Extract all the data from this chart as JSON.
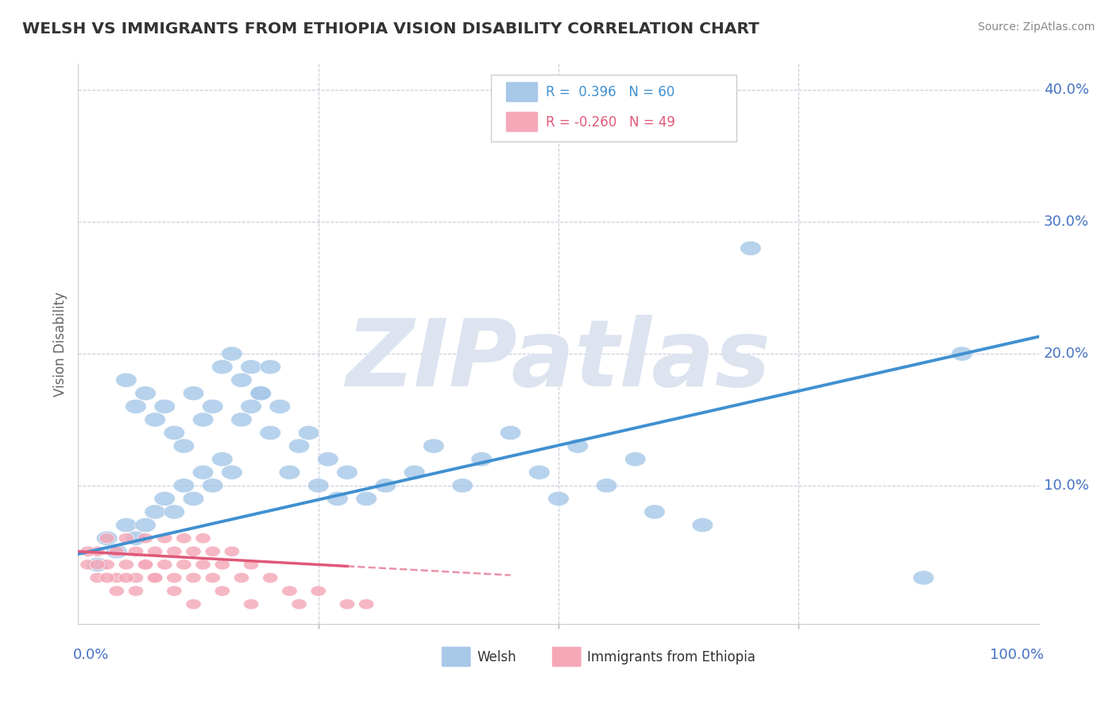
{
  "title": "WELSH VS IMMIGRANTS FROM ETHIOPIA VISION DISABILITY CORRELATION CHART",
  "source": "Source: ZipAtlas.com",
  "ylabel": "Vision Disability",
  "xlim": [
    0.0,
    1.0
  ],
  "ylim": [
    -0.005,
    0.42
  ],
  "welsh_R": 0.396,
  "welsh_N": 60,
  "ethiopia_R": -0.26,
  "ethiopia_N": 49,
  "blue_color": "#a8c8e8",
  "blue_line_color": "#4090d0",
  "blue_text_color": "#4090d0",
  "pink_color": "#f4a8b8",
  "pink_line_color": "#e05878",
  "pink_text_color": "#e05878",
  "background_color": "#ffffff",
  "watermark_color": "#dde4f0",
  "grid_color": "#c8ccd8",
  "title_color": "#333333",
  "axis_label_color": "#4472c4",
  "ytick_vals": [
    0.0,
    0.1,
    0.2,
    0.3,
    0.4
  ],
  "ytick_labels": [
    "",
    "10.0%",
    "20.0%",
    "30.0%",
    "40.0%"
  ],
  "welsh_x": [
    0.02,
    0.03,
    0.04,
    0.05,
    0.06,
    0.07,
    0.08,
    0.09,
    0.1,
    0.11,
    0.12,
    0.13,
    0.14,
    0.15,
    0.16,
    0.17,
    0.18,
    0.19,
    0.2,
    0.21,
    0.22,
    0.23,
    0.24,
    0.25,
    0.26,
    0.27,
    0.28,
    0.3,
    0.32,
    0.35,
    0.37,
    0.4,
    0.42,
    0.45,
    0.48,
    0.5,
    0.52,
    0.55,
    0.58,
    0.6,
    0.05,
    0.06,
    0.07,
    0.08,
    0.09,
    0.1,
    0.11,
    0.12,
    0.13,
    0.14,
    0.15,
    0.16,
    0.17,
    0.18,
    0.19,
    0.2,
    0.65,
    0.7,
    0.88,
    0.92
  ],
  "welsh_y": [
    0.04,
    0.06,
    0.05,
    0.07,
    0.06,
    0.07,
    0.08,
    0.09,
    0.08,
    0.1,
    0.09,
    0.11,
    0.1,
    0.12,
    0.11,
    0.15,
    0.16,
    0.17,
    0.14,
    0.16,
    0.11,
    0.13,
    0.14,
    0.1,
    0.12,
    0.09,
    0.11,
    0.09,
    0.1,
    0.11,
    0.13,
    0.1,
    0.12,
    0.14,
    0.11,
    0.09,
    0.13,
    0.1,
    0.12,
    0.08,
    0.18,
    0.16,
    0.17,
    0.15,
    0.16,
    0.14,
    0.13,
    0.17,
    0.15,
    0.16,
    0.19,
    0.2,
    0.18,
    0.19,
    0.17,
    0.19,
    0.07,
    0.28,
    0.03,
    0.2
  ],
  "ethiopia_x": [
    0.01,
    0.02,
    0.02,
    0.03,
    0.03,
    0.04,
    0.04,
    0.05,
    0.05,
    0.06,
    0.06,
    0.07,
    0.07,
    0.08,
    0.08,
    0.09,
    0.09,
    0.1,
    0.1,
    0.11,
    0.11,
    0.12,
    0.12,
    0.13,
    0.13,
    0.14,
    0.14,
    0.15,
    0.16,
    0.17,
    0.18,
    0.2,
    0.22,
    0.25,
    0.28,
    0.3,
    0.01,
    0.02,
    0.03,
    0.04,
    0.05,
    0.06,
    0.07,
    0.08,
    0.1,
    0.12,
    0.15,
    0.18,
    0.23
  ],
  "ethiopia_y": [
    0.04,
    0.03,
    0.05,
    0.04,
    0.06,
    0.03,
    0.05,
    0.04,
    0.06,
    0.03,
    0.05,
    0.04,
    0.06,
    0.03,
    0.05,
    0.04,
    0.06,
    0.03,
    0.05,
    0.04,
    0.06,
    0.03,
    0.05,
    0.04,
    0.06,
    0.03,
    0.05,
    0.04,
    0.05,
    0.03,
    0.04,
    0.03,
    0.02,
    0.02,
    0.01,
    0.01,
    0.05,
    0.04,
    0.03,
    0.02,
    0.03,
    0.02,
    0.04,
    0.03,
    0.02,
    0.01,
    0.02,
    0.01,
    0.01
  ]
}
